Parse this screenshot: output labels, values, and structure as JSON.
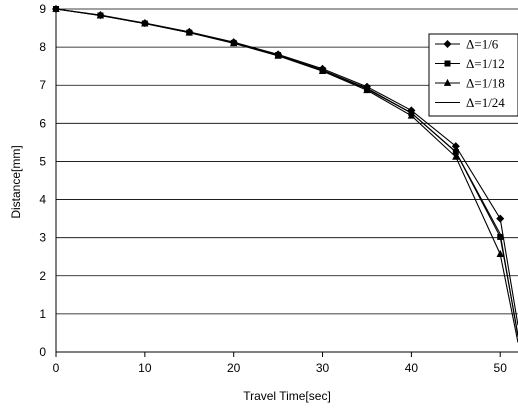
{
  "chart_data": {
    "type": "line",
    "title": "",
    "xlabel": "Travel Time[sec]",
    "ylabel": "Distance[mm]",
    "xlim": [
      0,
      52
    ],
    "ylim": [
      0,
      9
    ],
    "xticks": [
      "0",
      "10",
      "20",
      "30",
      "40",
      "50"
    ],
    "yticks": [
      "0",
      "1",
      "2",
      "3",
      "4",
      "5",
      "6",
      "7",
      "8",
      "9"
    ],
    "grid": "horizontal",
    "legend_position": "right",
    "series": [
      {
        "name": "Δ=1/6",
        "marker": "diamond",
        "x": [
          0,
          5,
          10,
          15,
          20,
          25,
          30,
          35,
          40,
          45,
          50,
          52
        ],
        "y": [
          9.0,
          8.84,
          8.63,
          8.4,
          8.13,
          7.81,
          7.43,
          6.96,
          6.34,
          5.4,
          3.5,
          0.7
        ]
      },
      {
        "name": "Δ=1/12",
        "marker": "square",
        "x": [
          0,
          5,
          10,
          15,
          20,
          25,
          30,
          35,
          40,
          45,
          50,
          52
        ],
        "y": [
          9.0,
          8.83,
          8.62,
          8.38,
          8.11,
          7.79,
          7.4,
          6.92,
          6.27,
          5.25,
          3.02,
          0.45
        ]
      },
      {
        "name": "Δ=1/18",
        "marker": "triangle",
        "x": [
          0,
          5,
          10,
          15,
          20,
          25,
          30,
          35,
          40,
          45,
          50,
          52
        ],
        "y": [
          9.0,
          8.83,
          8.62,
          8.38,
          8.1,
          7.77,
          7.37,
          6.87,
          6.2,
          5.12,
          2.57,
          0.25
        ]
      },
      {
        "name": "Δ=1/24",
        "marker": "none",
        "x": [
          0,
          5,
          10,
          15,
          20,
          25,
          30,
          35,
          40,
          45,
          50,
          52
        ],
        "y": [
          9.0,
          8.83,
          8.62,
          8.38,
          8.11,
          7.78,
          7.39,
          6.9,
          6.27,
          5.25,
          3.1,
          0.4
        ]
      }
    ]
  }
}
